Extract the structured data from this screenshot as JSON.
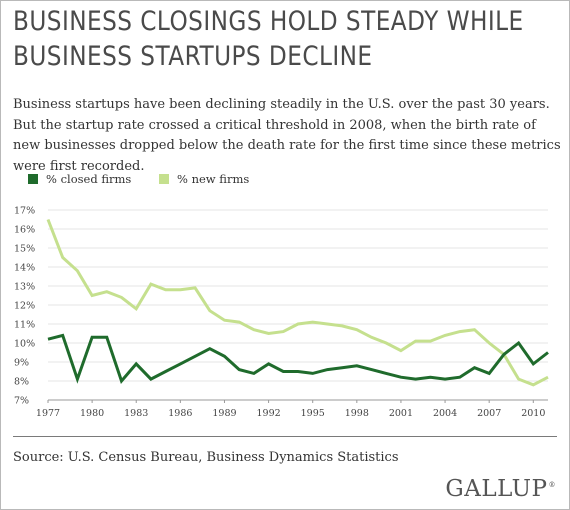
{
  "title": "BUSINESS CLOSINGS HOLD STEADY WHILE BUSINESS STARTUPS DECLINE",
  "subtitle": "Business startups have been declining steadily in the U.S. over the past 30 years. But the startup rate crossed a critical threshold in 2008, when the birth rate of new businesses dropped below the death rate for the first time since these metrics were first recorded.",
  "source": "Source: U.S. Census Bureau, Business Dynamics Statistics",
  "logo": "GALLUP",
  "logo_mark": "®",
  "colors": {
    "closed": "#1f6b2c",
    "new": "#c5e08e",
    "grid": "#e6e6e6",
    "axis": "#999999"
  },
  "chart_data": {
    "type": "line",
    "x": [
      1977,
      1978,
      1979,
      1980,
      1981,
      1982,
      1983,
      1984,
      1985,
      1986,
      1987,
      1988,
      1989,
      1990,
      1991,
      1992,
      1993,
      1994,
      1995,
      1996,
      1997,
      1998,
      1999,
      2000,
      2001,
      2002,
      2003,
      2004,
      2005,
      2006,
      2007,
      2008,
      2009,
      2010,
      2011
    ],
    "series": [
      {
        "name": "% closed firms",
        "color": "#1f6b2c",
        "values": [
          10.2,
          10.4,
          8.1,
          10.3,
          10.3,
          8.0,
          8.9,
          8.1,
          8.5,
          8.9,
          9.3,
          9.7,
          9.3,
          8.6,
          8.4,
          8.9,
          8.5,
          8.5,
          8.4,
          8.6,
          8.7,
          8.8,
          8.6,
          8.4,
          8.2,
          8.1,
          8.2,
          8.1,
          8.2,
          8.7,
          8.4,
          9.4,
          10.0,
          8.9,
          9.5
        ]
      },
      {
        "name": "% new firms",
        "color": "#c5e08e",
        "values": [
          16.5,
          14.5,
          13.8,
          12.5,
          12.7,
          12.4,
          11.8,
          13.1,
          12.8,
          12.8,
          12.9,
          11.7,
          11.2,
          11.1,
          10.7,
          10.5,
          10.6,
          11.0,
          11.1,
          11.0,
          10.9,
          10.7,
          10.3,
          10.0,
          9.6,
          10.1,
          10.1,
          10.4,
          10.6,
          10.7,
          10.0,
          9.4,
          8.1,
          7.8,
          8.2
        ]
      }
    ],
    "x_ticks": [
      "1977",
      "1980",
      "1983",
      "1986",
      "1989",
      "1992",
      "1995",
      "1998",
      "2001",
      "2004",
      "2007",
      "2010"
    ],
    "y_ticks": [
      "17%",
      "16%",
      "15%",
      "14%",
      "13%",
      "12%",
      "11%",
      "10%",
      "9%",
      "8%",
      "7%"
    ],
    "ylim": [
      7,
      17
    ],
    "xlim": [
      1977,
      2011
    ],
    "grid": true,
    "legend_position": "top-left"
  }
}
